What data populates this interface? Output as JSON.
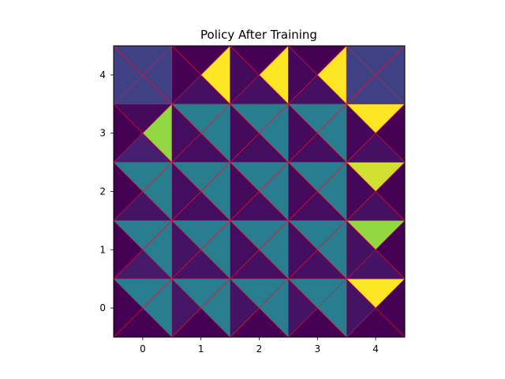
{
  "chart_data": {
    "type": "heatmap",
    "title": "Policy After Training",
    "xlabel": "",
    "ylabel": "",
    "x_ticks": [
      "0",
      "1",
      "2",
      "3",
      "4"
    ],
    "y_ticks": [
      "0",
      "1",
      "2",
      "3",
      "4"
    ],
    "xlim": [
      -0.5,
      4.5
    ],
    "ylim": [
      -0.5,
      4.5
    ],
    "grid": false,
    "colormap": "viridis",
    "color_range": [
      0,
      1
    ],
    "edge_color": "#dc143c",
    "action_order": [
      "up",
      "right",
      "down",
      "left"
    ],
    "cells": [
      {
        "x": 0,
        "y": 4,
        "values": {
          "up": 0.22,
          "right": 0.22,
          "down": 0.22,
          "left": 0.22
        }
      },
      {
        "x": 1,
        "y": 4,
        "values": {
          "up": 0.0,
          "right": 1.0,
          "down": 0.05,
          "left": 0.0
        }
      },
      {
        "x": 2,
        "y": 4,
        "values": {
          "up": 0.0,
          "right": 1.0,
          "down": 0.05,
          "left": 0.03
        }
      },
      {
        "x": 3,
        "y": 4,
        "values": {
          "up": 0.0,
          "right": 1.0,
          "down": 0.05,
          "left": 0.02
        }
      },
      {
        "x": 4,
        "y": 4,
        "values": {
          "up": 0.22,
          "right": 0.22,
          "down": 0.22,
          "left": 0.22
        }
      },
      {
        "x": 0,
        "y": 3,
        "values": {
          "up": 0.03,
          "right": 0.88,
          "down": 0.1,
          "left": 0.0
        }
      },
      {
        "x": 1,
        "y": 3,
        "values": {
          "up": 0.48,
          "right": 0.48,
          "down": 0.04,
          "left": 0.04
        }
      },
      {
        "x": 2,
        "y": 3,
        "values": {
          "up": 0.48,
          "right": 0.48,
          "down": 0.04,
          "left": 0.03
        }
      },
      {
        "x": 3,
        "y": 3,
        "values": {
          "up": 0.48,
          "right": 0.48,
          "down": 0.04,
          "left": 0.03
        }
      },
      {
        "x": 4,
        "y": 3,
        "values": {
          "up": 1.0,
          "right": 0.0,
          "down": 0.05,
          "left": 0.02
        }
      },
      {
        "x": 0,
        "y": 2,
        "values": {
          "up": 0.48,
          "right": 0.48,
          "down": 0.06,
          "left": 0.0
        }
      },
      {
        "x": 1,
        "y": 2,
        "values": {
          "up": 0.48,
          "right": 0.48,
          "down": 0.04,
          "left": 0.04
        }
      },
      {
        "x": 2,
        "y": 2,
        "values": {
          "up": 0.48,
          "right": 0.48,
          "down": 0.04,
          "left": 0.03
        }
      },
      {
        "x": 3,
        "y": 2,
        "values": {
          "up": 0.48,
          "right": 0.48,
          "down": 0.04,
          "left": 0.03
        }
      },
      {
        "x": 4,
        "y": 2,
        "values": {
          "up": 0.95,
          "right": 0.0,
          "down": 0.05,
          "left": 0.02
        }
      },
      {
        "x": 0,
        "y": 1,
        "values": {
          "up": 0.48,
          "right": 0.48,
          "down": 0.08,
          "left": 0.0
        }
      },
      {
        "x": 1,
        "y": 1,
        "values": {
          "up": 0.48,
          "right": 0.48,
          "down": 0.06,
          "left": 0.06
        }
      },
      {
        "x": 2,
        "y": 1,
        "values": {
          "up": 0.48,
          "right": 0.48,
          "down": 0.05,
          "left": 0.04
        }
      },
      {
        "x": 3,
        "y": 1,
        "values": {
          "up": 0.48,
          "right": 0.48,
          "down": 0.05,
          "left": 0.04
        }
      },
      {
        "x": 4,
        "y": 1,
        "values": {
          "up": 0.88,
          "right": 0.0,
          "down": 0.06,
          "left": 0.05
        }
      },
      {
        "x": 0,
        "y": 0,
        "values": {
          "up": 0.48,
          "right": 0.48,
          "down": 0.0,
          "left": 0.0
        }
      },
      {
        "x": 1,
        "y": 0,
        "values": {
          "up": 0.48,
          "right": 0.48,
          "down": 0.0,
          "left": 0.07
        }
      },
      {
        "x": 2,
        "y": 0,
        "values": {
          "up": 0.48,
          "right": 0.48,
          "down": 0.0,
          "left": 0.06
        }
      },
      {
        "x": 3,
        "y": 0,
        "values": {
          "up": 0.48,
          "right": 0.48,
          "down": 0.0,
          "left": 0.06
        }
      },
      {
        "x": 4,
        "y": 0,
        "values": {
          "up": 1.0,
          "right": 0.0,
          "down": 0.0,
          "left": 0.06
        }
      }
    ]
  }
}
